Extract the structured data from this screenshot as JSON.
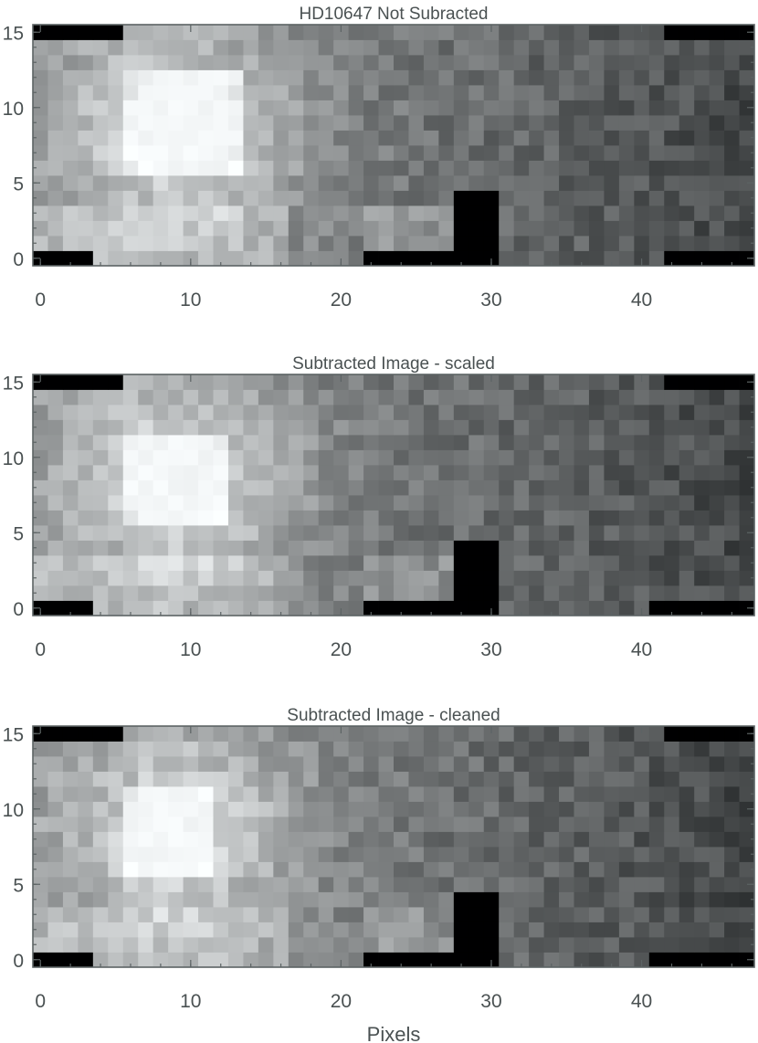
{
  "figure": {
    "xlabel": "Pixels"
  },
  "chart_data": [
    {
      "type": "heatmap",
      "title": "HD10647 Not Subracted",
      "xlabel": "",
      "ylabel": "",
      "xlim": [
        -0.5,
        47.5
      ],
      "ylim": [
        -0.5,
        15.5
      ],
      "x_ticks": [
        "0",
        "10",
        "20",
        "30",
        "40"
      ],
      "y_ticks": [
        "0",
        "5",
        "10",
        "15"
      ],
      "colormap": "grayscale (black = low, white = high)",
      "pixel_grid": [
        48,
        16
      ],
      "features": [
        {
          "label": "star",
          "value": 1.0,
          "x": [
            5.5,
            13.5
          ],
          "y": [
            5.5,
            12.5
          ]
        },
        {
          "label": "masked region",
          "value": 0.0,
          "x": [
            27.5,
            30.5
          ],
          "y": [
            -0.5,
            4.5
          ]
        },
        {
          "label": "masked row",
          "value": 0.0,
          "x": [
            21.5,
            27.5
          ],
          "y": [
            -0.5,
            0.5
          ]
        },
        {
          "label": "masked row",
          "value": 0.0,
          "x": [
            -0.5,
            3.5
          ],
          "y": [
            -0.5,
            0.5
          ]
        },
        {
          "label": "masked row",
          "value": 0.0,
          "x": [
            -0.5,
            5.5
          ],
          "y": [
            14.5,
            15.5
          ]
        },
        {
          "label": "masked row",
          "value": 0.0,
          "x": [
            41.5,
            47.5
          ],
          "y": [
            14.5,
            15.5
          ]
        },
        {
          "label": "masked row",
          "value": 0.0,
          "x": [
            41.5,
            47.5
          ],
          "y": [
            -0.5,
            0.5
          ]
        }
      ]
    },
    {
      "type": "heatmap",
      "title": "Subtracted Image - scaled",
      "xlabel": "",
      "ylabel": "",
      "xlim": [
        -0.5,
        47.5
      ],
      "ylim": [
        -0.5,
        15.5
      ],
      "x_ticks": [
        "0",
        "10",
        "20",
        "30",
        "40"
      ],
      "y_ticks": [
        "0",
        "5",
        "10",
        "15"
      ],
      "colormap": "grayscale (black = low, white = high)",
      "pixel_grid": [
        48,
        16
      ],
      "features": [
        {
          "label": "star",
          "value": 1.0,
          "x": [
            5.5,
            12.5
          ],
          "y": [
            5.5,
            11.5
          ]
        },
        {
          "label": "masked region",
          "value": 0.0,
          "x": [
            27.5,
            30.5
          ],
          "y": [
            -0.5,
            4.5
          ]
        },
        {
          "label": "masked row",
          "value": 0.0,
          "x": [
            21.5,
            27.5
          ],
          "y": [
            -0.5,
            0.5
          ]
        },
        {
          "label": "masked row",
          "value": 0.0,
          "x": [
            -0.5,
            3.5
          ],
          "y": [
            -0.5,
            0.5
          ]
        },
        {
          "label": "masked row",
          "value": 0.0,
          "x": [
            -0.5,
            5.5
          ],
          "y": [
            14.5,
            15.5
          ]
        },
        {
          "label": "masked row",
          "value": 0.0,
          "x": [
            41.5,
            47.5
          ],
          "y": [
            14.5,
            15.5
          ]
        },
        {
          "label": "masked row",
          "value": 0.0,
          "x": [
            40.5,
            47.5
          ],
          "y": [
            -0.5,
            0.5
          ]
        }
      ]
    },
    {
      "type": "heatmap",
      "title": "Subtracted Image - cleaned",
      "xlabel": "Pixels",
      "ylabel": "",
      "xlim": [
        -0.5,
        47.5
      ],
      "ylim": [
        -0.5,
        15.5
      ],
      "x_ticks": [
        "0",
        "10",
        "20",
        "30",
        "40"
      ],
      "y_ticks": [
        "0",
        "5",
        "10",
        "15"
      ],
      "colormap": "grayscale (black = low, white = high)",
      "pixel_grid": [
        48,
        16
      ],
      "features": [
        {
          "label": "star",
          "value": 1.0,
          "x": [
            5.5,
            11.5
          ],
          "y": [
            5.5,
            11.5
          ]
        },
        {
          "label": "masked region",
          "value": 0.0,
          "x": [
            27.5,
            30.5
          ],
          "y": [
            -0.5,
            4.5
          ]
        },
        {
          "label": "masked row",
          "value": 0.0,
          "x": [
            21.5,
            27.5
          ],
          "y": [
            -0.5,
            0.5
          ]
        },
        {
          "label": "masked row",
          "value": 0.0,
          "x": [
            -0.5,
            3.5
          ],
          "y": [
            -0.5,
            0.5
          ]
        },
        {
          "label": "masked row",
          "value": 0.0,
          "x": [
            -0.5,
            5.5
          ],
          "y": [
            14.5,
            15.5
          ]
        },
        {
          "label": "masked row",
          "value": 0.0,
          "x": [
            41.5,
            47.5
          ],
          "y": [
            14.5,
            15.5
          ]
        },
        {
          "label": "masked row",
          "value": 0.0,
          "x": [
            40.5,
            47.5
          ],
          "y": [
            -0.5,
            0.5
          ]
        }
      ]
    }
  ]
}
